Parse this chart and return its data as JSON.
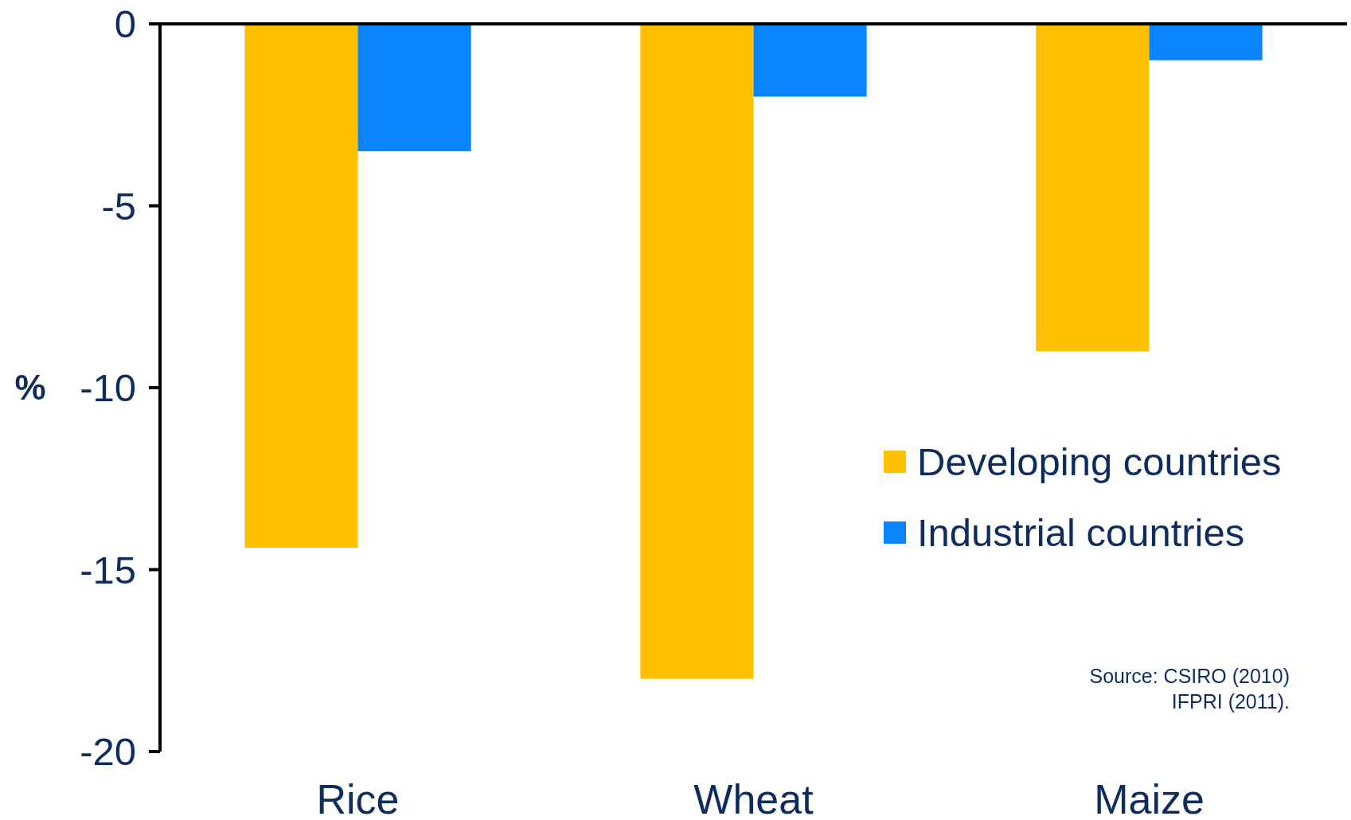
{
  "chart_data": {
    "type": "bar",
    "ylabel": "%",
    "categories": [
      "Rice",
      "Wheat",
      "Maize"
    ],
    "series": [
      {
        "name": "Developing countries",
        "color": "#ffc000",
        "values": [
          -14.4,
          -18,
          -9
        ]
      },
      {
        "name": "Industrial countries",
        "color": "#0a84ff",
        "values": [
          -3.5,
          -2,
          -1
        ]
      }
    ],
    "ylim": [
      -20,
      0
    ],
    "yticks": [
      0,
      -5,
      -10,
      -15,
      -20
    ],
    "legend": "right",
    "grid": false,
    "annotations": [
      "Source: CSIRO (2010)\nIFPRI (2011)."
    ]
  }
}
